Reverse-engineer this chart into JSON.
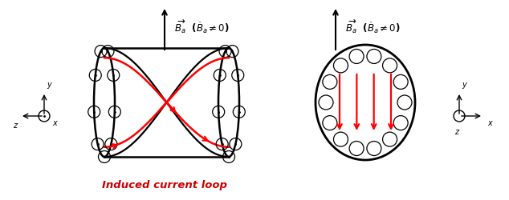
{
  "bg_color": "#ffffff",
  "title_text": "Induced current loop",
  "title_color": "#cc0000",
  "title_style": "italic"
}
